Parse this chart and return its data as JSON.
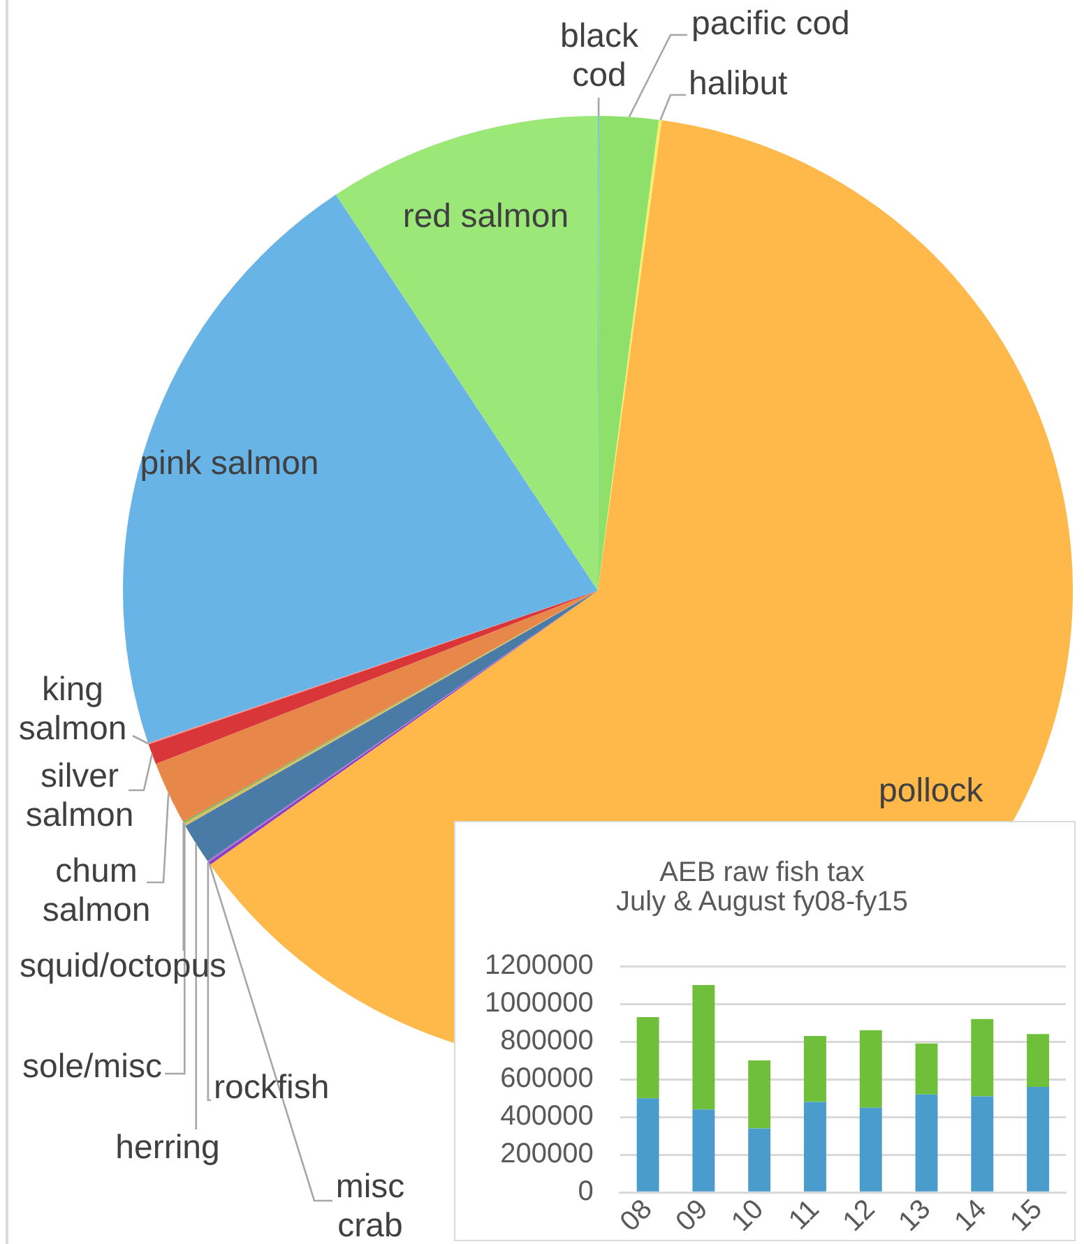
{
  "chart_data": [
    {
      "type": "pie",
      "categories": [
        "black cod",
        "pacific cod",
        "halibut",
        "pollock",
        "misc crab",
        "rockfish",
        "herring",
        "sole/misc",
        "squid/octopus",
        "chum salmon",
        "silver salmon",
        "king salmon",
        "pink salmon",
        "red salmon"
      ],
      "values": [
        0.05,
        2.0,
        0.1,
        63.05,
        0.1,
        0.05,
        1.4,
        0.1,
        0.05,
        2.15,
        0.7,
        0.05,
        20.9,
        9.3
      ],
      "colors": [
        "#7fc0ee",
        "#8ee06a",
        "#f5ef6a",
        "#ffb84a",
        "#8a3fc0",
        "#b06fd8",
        "#4a7aa6",
        "#d4c060",
        "#7fae5a",
        "#e8874a",
        "#d9363a",
        "#f08a8a",
        "#68b4e6",
        "#9be879"
      ]
    },
    {
      "type": "bar",
      "title": "AEB raw fish tax\nJuly & August fy08-fy15",
      "categories": [
        "08",
        "09",
        "10",
        "11",
        "12",
        "13",
        "14",
        "15"
      ],
      "stacked": true,
      "series": [
        {
          "color": "#4a9ccc",
          "values": [
            500000,
            440000,
            340000,
            480000,
            450000,
            520000,
            510000,
            560000
          ]
        },
        {
          "color": "#6fbf3a",
          "values": [
            430000,
            660000,
            360000,
            350000,
            410000,
            270000,
            410000,
            280000
          ]
        }
      ],
      "ylim": [
        0,
        1200000
      ],
      "yticks": [
        0,
        200000,
        400000,
        600000,
        800000,
        1000000,
        1200000
      ],
      "grid": "y"
    }
  ]
}
